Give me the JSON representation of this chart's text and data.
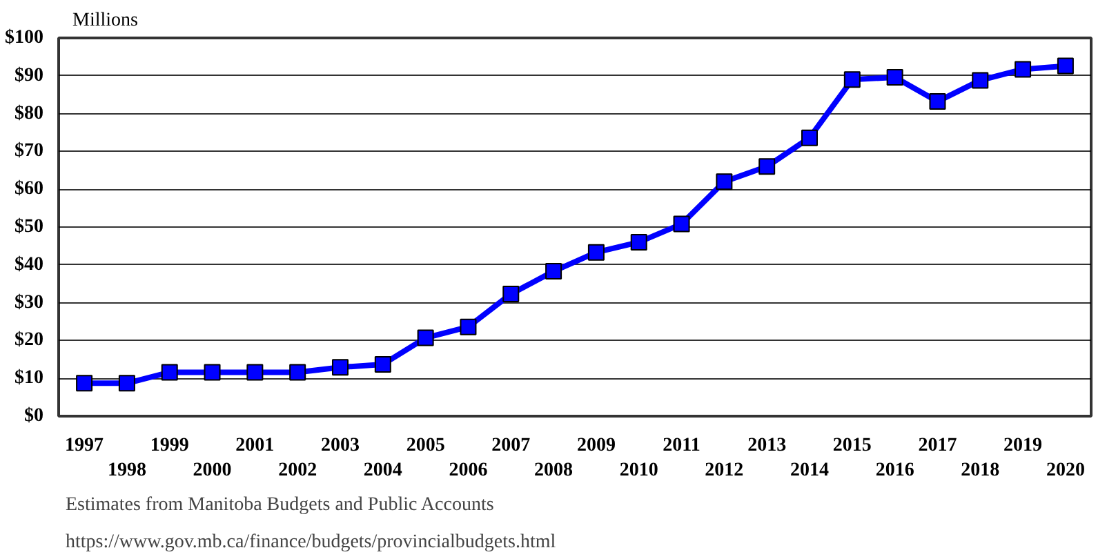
{
  "chart_data": {
    "type": "line",
    "ylabel": "Millions",
    "categories": [
      "1997",
      "1998",
      "1999",
      "2000",
      "2001",
      "2002",
      "2003",
      "2004",
      "2005",
      "2006",
      "2007",
      "2008",
      "2009",
      "2010",
      "2011",
      "2012",
      "2013",
      "2014",
      "2015",
      "2016",
      "2017",
      "2018",
      "2019",
      "2020"
    ],
    "series": [
      {
        "color": "#0000ff",
        "values": [
          8.7,
          8.7,
          11.6,
          11.6,
          11.6,
          11.6,
          12.9,
          13.7,
          20.7,
          23.6,
          32.3,
          38.3,
          43.3,
          46,
          50.8,
          62,
          66,
          73.6,
          89,
          89.6,
          83.2,
          88.8,
          91.7,
          92.6
        ]
      }
    ],
    "ylim": [
      0,
      100
    ],
    "yticks": [
      {
        "value": 0,
        "label": "$0"
      },
      {
        "value": 10,
        "label": "$10"
      },
      {
        "value": 20,
        "label": "$20"
      },
      {
        "value": 30,
        "label": "$30"
      },
      {
        "value": 40,
        "label": "$40"
      },
      {
        "value": 50,
        "label": "$50"
      },
      {
        "value": 60,
        "label": "$60"
      },
      {
        "value": 70,
        "label": "$70"
      },
      {
        "value": 80,
        "label": "$80"
      },
      {
        "value": 90,
        "label": "$90"
      },
      {
        "value": 100,
        "label": "$100"
      }
    ],
    "grid": "y",
    "marker": "square",
    "line_style": "solid",
    "annotations": [
      "Estimates from Manitoba Budgets and Public Accounts",
      "https://www.gov.mb.ca/finance/budgets/provincialbudgets.html"
    ]
  }
}
